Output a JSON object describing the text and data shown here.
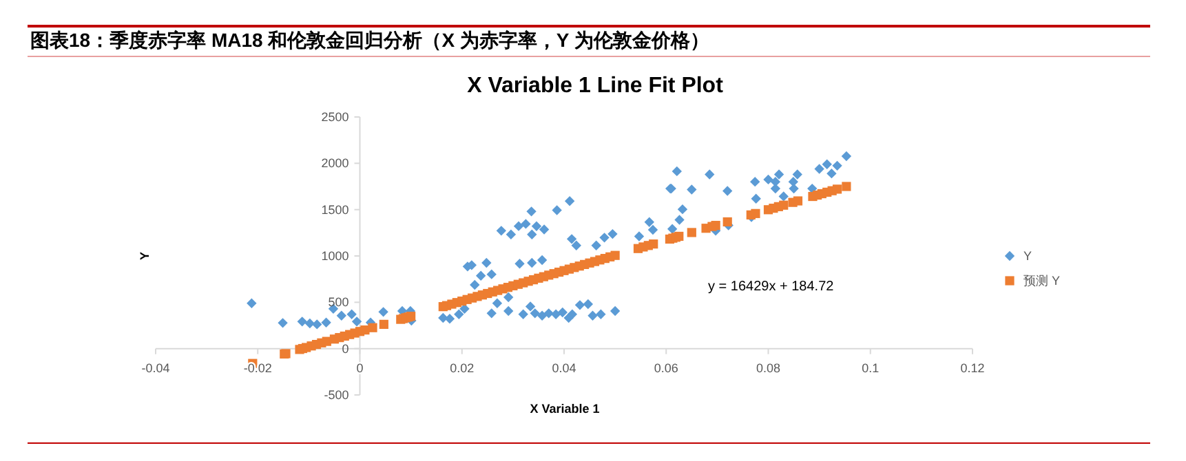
{
  "chart_data": {
    "type": "scatter",
    "title": "图表18：季度赤字率 MA18 和伦敦金回归分析（X 为赤字率，Y 为伦敦金价格）",
    "subtitle": "X Variable 1 Line Fit  Plot",
    "xlabel": "X Variable 1",
    "ylabel": "Y",
    "xlim": [
      -0.04,
      0.12
    ],
    "xticks": [
      -0.04,
      -0.02,
      0,
      0.02,
      0.04,
      0.06,
      0.08,
      0.1,
      0.12
    ],
    "ylim": [
      -500,
      2500
    ],
    "yticks": [
      -500,
      0,
      500,
      1000,
      1500,
      2000,
      2500
    ],
    "grid": false,
    "legend": "right",
    "annotations": [
      "y = 16429x + 184.72"
    ],
    "series": [
      {
        "name": "Y",
        "color": "#5b9bd5",
        "marker": "diamond",
        "x": [
          -0.0212,
          -0.0151,
          -0.0113,
          -0.0098,
          -0.0084,
          -0.0066,
          -0.0052,
          -0.0036,
          -0.0016,
          -0.0006,
          0.0021,
          0.0046,
          0.0083,
          0.0099,
          0.0101,
          0.0163,
          0.0176,
          0.0194,
          0.0205,
          0.0211,
          0.0219,
          0.0225,
          0.0237,
          0.0248,
          0.0258,
          0.0269,
          0.0258,
          0.0277,
          0.0291,
          0.0291,
          0.0296,
          0.0311,
          0.0313,
          0.0325,
          0.0336,
          0.0337,
          0.0346,
          0.0361,
          0.0386,
          0.0411,
          0.0415,
          0.0424,
          0.0463,
          0.0479,
          0.0495,
          0.0337,
          0.0357,
          0.032,
          0.0334,
          0.0343,
          0.0357,
          0.037,
          0.0384,
          0.0397,
          0.0409,
          0.0416,
          0.0431,
          0.0447,
          0.0456,
          0.0472,
          0.05,
          0.0547,
          0.0567,
          0.0574,
          0.0608,
          0.061,
          0.0612,
          0.0621,
          0.0626,
          0.0632,
          0.065,
          0.0685,
          0.0697,
          0.072,
          0.0722,
          0.0767,
          0.0774,
          0.0776,
          0.08,
          0.0814,
          0.0814,
          0.0821,
          0.083,
          0.0849,
          0.085,
          0.0857,
          0.0886,
          0.09,
          0.0915,
          0.0924,
          0.0935,
          0.0953
        ],
        "values": [
          490,
          277,
          292,
          272,
          262,
          282,
          430,
          356,
          371,
          292,
          282,
          396,
          406,
          406,
          302,
          332,
          322,
          371,
          430,
          886,
          901,
          688,
          787,
          926,
          802,
          490,
          381,
          1272,
          554,
          406,
          1232,
          1322,
          916,
          1346,
          1480,
          1232,
          1321,
          1286,
          1494,
          1592,
          1183,
          1113,
          1113,
          1198,
          1237,
          926,
          955,
          371,
          455,
          381,
          356,
          381,
          371,
          391,
          331,
          371,
          470,
          480,
          356,
          371,
          406,
          1212,
          1366,
          1282,
          1727,
          1727,
          1292,
          1914,
          1390,
          1504,
          1717,
          1880,
          1272,
          1702,
          1331,
          1420,
          1801,
          1618,
          1825,
          1801,
          1727,
          1880,
          1643,
          1801,
          1727,
          1880,
          1727,
          1939,
          1989,
          1890,
          1974,
          2077
        ]
      },
      {
        "name": "预测 Y",
        "color": "#ed7d31",
        "marker": "square",
        "x": [
          -0.021,
          -0.0148,
          -0.0145,
          -0.0118,
          -0.0112,
          -0.0105,
          -0.0095,
          -0.0085,
          -0.0075,
          -0.0065,
          -0.005,
          -0.004,
          -0.003,
          -0.002,
          -0.001,
          0,
          0.001,
          0.0025,
          0.0047,
          0.008,
          0.0085,
          0.009,
          0.0095,
          0.01,
          0.0163,
          0.017,
          0.018,
          0.019,
          0.02,
          0.021,
          0.022,
          0.023,
          0.024,
          0.025,
          0.026,
          0.027,
          0.028,
          0.029,
          0.03,
          0.031,
          0.032,
          0.033,
          0.034,
          0.035,
          0.036,
          0.037,
          0.038,
          0.039,
          0.04,
          0.041,
          0.042,
          0.043,
          0.044,
          0.045,
          0.046,
          0.047,
          0.048,
          0.049,
          0.05,
          0.0545,
          0.0555,
          0.0565,
          0.0575,
          0.0607,
          0.0613,
          0.0619,
          0.0625,
          0.065,
          0.0678,
          0.069,
          0.0697,
          0.072,
          0.0766,
          0.0775,
          0.08,
          0.081,
          0.082,
          0.083,
          0.0848,
          0.0858,
          0.0887,
          0.0896,
          0.0905,
          0.0915,
          0.0925,
          0.0935,
          0.0953
        ],
        "values": [
          -160,
          -58,
          -54,
          -9,
          1,
          12,
          29,
          45,
          62,
          78,
          103,
          119,
          135,
          152,
          168,
          185,
          201,
          226,
          262,
          316,
          324,
          333,
          341,
          349,
          453,
          464,
          480,
          497,
          513,
          530,
          546,
          563,
          579,
          595,
          612,
          628,
          645,
          661,
          678,
          694,
          710,
          727,
          743,
          760,
          776,
          793,
          809,
          825,
          842,
          858,
          875,
          891,
          908,
          924,
          940,
          957,
          973,
          990,
          1006,
          1080,
          1097,
          1113,
          1129,
          1182,
          1192,
          1202,
          1212,
          1253,
          1299,
          1318,
          1330,
          1368,
          1443,
          1458,
          1499,
          1515,
          1532,
          1548,
          1578,
          1594,
          1642,
          1657,
          1672,
          1688,
          1704,
          1721,
          1750
        ]
      }
    ]
  }
}
